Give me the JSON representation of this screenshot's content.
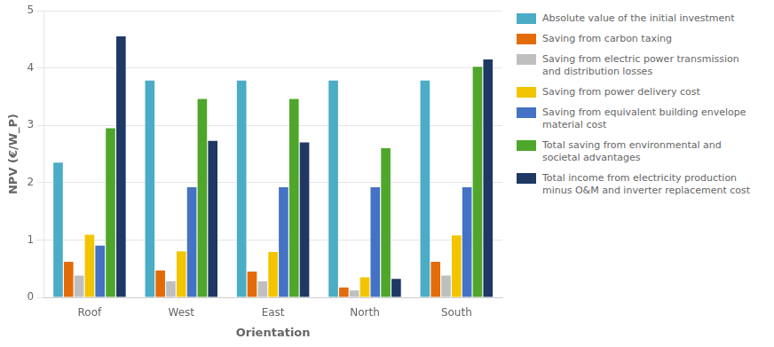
{
  "chart_data": {
    "type": "bar",
    "xlabel": "Orientation",
    "ylabel": "NPV (€/W_P)",
    "categories": [
      "Roof",
      "West",
      "East",
      "North",
      "South"
    ],
    "series": [
      {
        "name": "Absolute value of the initial investment",
        "color": "#4BACC6",
        "values": [
          2.35,
          3.78,
          3.78,
          3.78,
          3.78
        ]
      },
      {
        "name": "Saving from carbon taxing",
        "color": "#E36C09",
        "values": [
          0.62,
          0.47,
          0.45,
          0.17,
          0.62
        ]
      },
      {
        "name": "Saving from electric power transmission and distribution losses",
        "color": "#BFBFBF",
        "values": [
          0.38,
          0.28,
          0.28,
          0.12,
          0.38
        ]
      },
      {
        "name": "Saving from power delivery cost",
        "color": "#F2C500",
        "values": [
          1.09,
          0.8,
          0.79,
          0.35,
          1.08
        ]
      },
      {
        "name": "Saving from equivalent building envelope material cost",
        "color": "#4472C4",
        "values": [
          0.9,
          1.92,
          1.92,
          1.92,
          1.92
        ]
      },
      {
        "name": "Total saving from environmental and societal advantages",
        "color": "#4EA72A",
        "values": [
          2.95,
          3.46,
          3.46,
          2.6,
          4.02
        ]
      },
      {
        "name": "Total income from electricity production minus O&M and inverter replacement cost",
        "color": "#1F3864",
        "values": [
          4.55,
          2.73,
          2.7,
          0.32,
          4.15
        ]
      }
    ],
    "ylim": [
      0,
      5
    ],
    "yticks": [
      0,
      1,
      2,
      3,
      4,
      5
    ],
    "grid": true,
    "legend": "right"
  }
}
